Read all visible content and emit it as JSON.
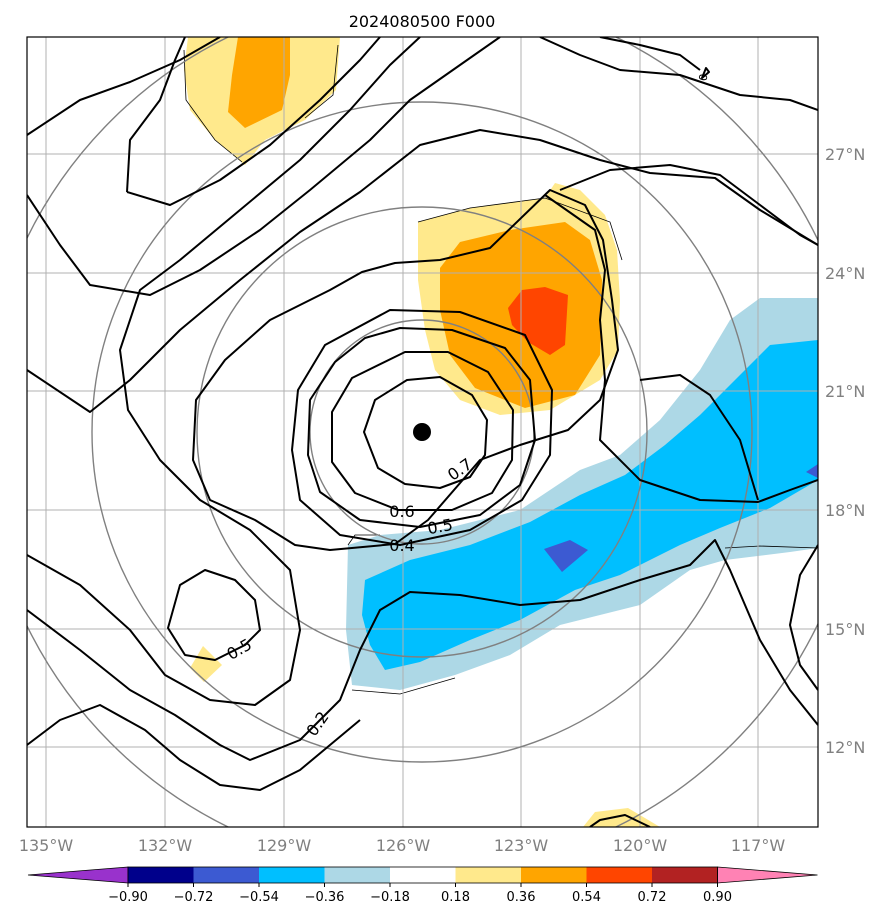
{
  "title": "2024080500 F000",
  "chart_data": {
    "type": "heatmap",
    "title": "2024080500 F000",
    "x_ticks": [
      "135°W",
      "132°W",
      "129°W",
      "126°W",
      "123°W",
      "120°W",
      "117°W"
    ],
    "y_ticks": [
      "27°N",
      "24°N",
      "21°N",
      "18°N",
      "15°N",
      "12°N"
    ],
    "colorbar": {
      "ticks": [
        "−0.90",
        "−0.72",
        "−0.54",
        "−0.36",
        "−0.18",
        "0.18",
        "0.36",
        "0.54",
        "0.72",
        "0.90"
      ],
      "colors": [
        "#9932cc",
        "#00008b",
        "#3c5ad2",
        "#00bfff",
        "#add8e6",
        "#ffffff",
        "#ffe98c",
        "#ffa500",
        "#ff4500",
        "#b22222",
        "#ff82b4"
      ]
    },
    "contour_labels": [
      "0.7",
      "0.6",
      "0.5",
      "0.4",
      "0.5",
      "0.2",
      "0"
    ],
    "center_marker": {
      "lon": -125.5,
      "lat": 20.0
    },
    "grid": true
  }
}
